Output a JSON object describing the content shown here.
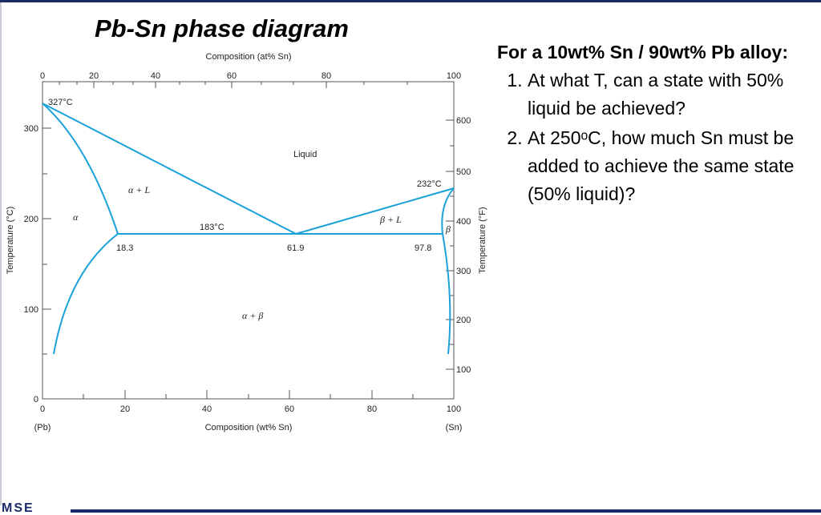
{
  "slide": {
    "title": "Pb-Sn phase diagram",
    "footer_logo": "MSE"
  },
  "diagram": {
    "top_axis": {
      "title": "Composition (at% Sn)",
      "ticks": [
        {
          "value": 0,
          "label": "0"
        },
        {
          "value": 20,
          "label": "20"
        },
        {
          "value": 40,
          "label": "40"
        },
        {
          "value": 60,
          "label": "60"
        },
        {
          "value": 80,
          "label": "80"
        },
        {
          "value": 100,
          "label": "100"
        }
      ]
    },
    "bottom_axis": {
      "title": "Composition (wt% Sn)",
      "ticks": [
        "0",
        "20",
        "40",
        "60",
        "80",
        "100"
      ],
      "end_labels": {
        "left": "(Pb)",
        "right": "(Sn)"
      }
    },
    "left_axis": {
      "title": "Temperature (°C)",
      "ticks": [
        "0",
        "100",
        "200",
        "300"
      ]
    },
    "right_axis": {
      "title": "Temperature (°F)",
      "ticks": [
        "100",
        "200",
        "300",
        "400",
        "500",
        "600"
      ]
    },
    "annotations": {
      "pb_melting": "327°C",
      "sn_melting": "232°C",
      "eutectic_temp": "183°C",
      "alpha_limit": "18.3",
      "eutectic_comp": "61.9",
      "beta_limit": "97.8"
    },
    "regions": {
      "liquid": "Liquid",
      "alpha_plus_liquid": "α + L",
      "alpha": "α",
      "beta_plus_liquid": "β + L",
      "beta": "β",
      "alpha_plus_beta": "α + β"
    },
    "line_color": "#1ba1d9"
  },
  "questions": {
    "heading": "For a 10wt% Sn / 90wt% Pb alloy:",
    "items": [
      "At what T, can a state with 50% liquid be achieved?",
      "At 250ᵒC, how much Sn must be added to achieve the same state (50% liquid)?"
    ]
  }
}
